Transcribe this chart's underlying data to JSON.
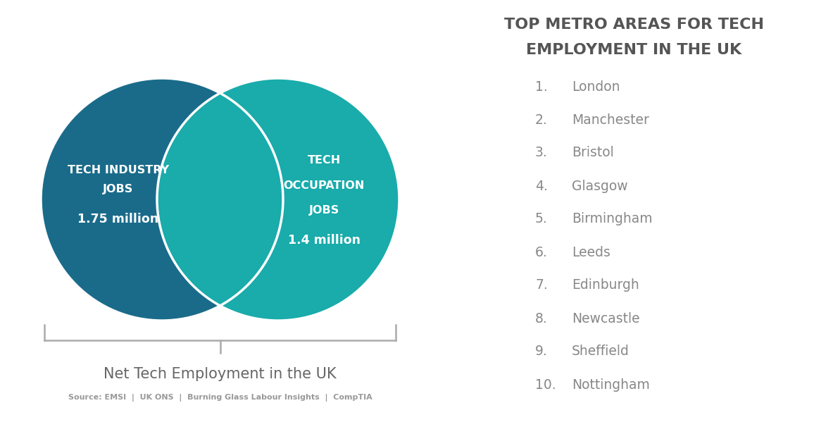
{
  "background_color": "#ffffff",
  "left_circle_color": "#1a6b8a",
  "right_circle_color": "#1aabab",
  "text_color_white": "#ffffff",
  "title_color": "#555555",
  "list_color": "#888888",
  "bracket_color": "#aaaaaa",
  "left_label_line1": "TECH INDUSTRY",
  "left_label_line2": "JOBS",
  "left_value": "1.75 million",
  "right_label_line1": "TECH",
  "right_label_line2": "OCCUPATION",
  "right_label_line3": "JOBS",
  "right_value": "1.4 million",
  "bracket_label": "Net Tech Employment in the UK",
  "source_text": "Source: EMSI  |  UK ONS  |  Burning Glass Labour Insights  |  CompTIA",
  "title_line1": "TOP METRO AREAS FOR TECH",
  "title_line2": "EMPLOYMENT IN THE UK",
  "cities": [
    "London",
    "Manchester",
    "Bristol",
    "Glasgow",
    "Birmingham",
    "Leeds",
    "Edinburgh",
    "Newcastle",
    "Sheffield",
    "Nottingham"
  ]
}
